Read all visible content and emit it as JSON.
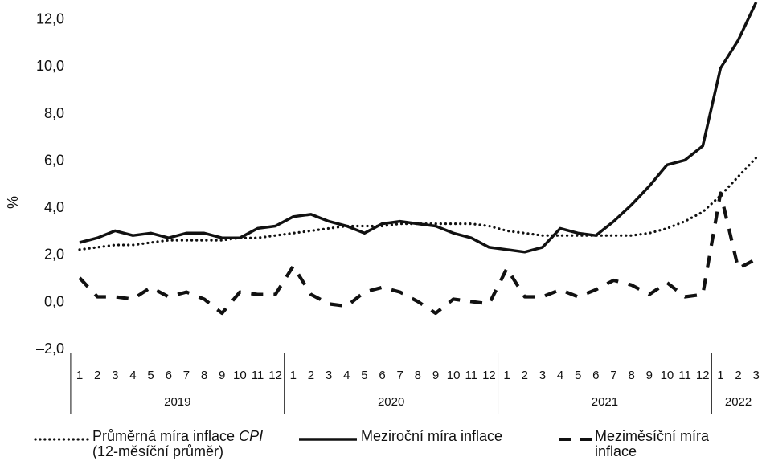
{
  "chart_data": {
    "type": "line",
    "ylabel": "%",
    "ylim": [
      -2.0,
      12.8
    ],
    "yticks": [
      "–2,0",
      "0,0",
      "2,0",
      "4,0",
      "6,0",
      "8,0",
      "10,0",
      "12,0"
    ],
    "ytick_values": [
      -2,
      0,
      2,
      4,
      6,
      8,
      10,
      12
    ],
    "months": [
      "1",
      "2",
      "3",
      "4",
      "5",
      "6",
      "7",
      "8",
      "9",
      "10",
      "11",
      "12",
      "1",
      "2",
      "3",
      "4",
      "5",
      "6",
      "7",
      "8",
      "9",
      "10",
      "11",
      "12",
      "1",
      "2",
      "3",
      "4",
      "5",
      "6",
      "7",
      "8",
      "9",
      "10",
      "11",
      "12",
      "1",
      "2",
      "3"
    ],
    "years": [
      {
        "label": "2019",
        "months": 12
      },
      {
        "label": "2020",
        "months": 12
      },
      {
        "label": "2021",
        "months": 12
      },
      {
        "label": "2022",
        "months": 3
      }
    ],
    "grid": false,
    "legend_position": "bottom",
    "series": [
      {
        "name": "Průměrná míra inflace CPI (12-měsíční průměr)",
        "name_main": "Průměrná míra inflace ",
        "name_italic": "CPI",
        "name_line2": "(12-měsíční průměr)",
        "style": "dotted",
        "values": [
          2.2,
          2.3,
          2.4,
          2.4,
          2.5,
          2.6,
          2.6,
          2.6,
          2.6,
          2.7,
          2.7,
          2.8,
          2.9,
          3.0,
          3.1,
          3.2,
          3.2,
          3.2,
          3.3,
          3.3,
          3.3,
          3.3,
          3.3,
          3.2,
          3.0,
          2.9,
          2.8,
          2.8,
          2.8,
          2.8,
          2.8,
          2.8,
          2.9,
          3.1,
          3.4,
          3.8,
          4.5,
          5.3,
          6.1
        ]
      },
      {
        "name": "Meziroční míra inflace",
        "style": "solid",
        "values": [
          2.5,
          2.7,
          3.0,
          2.8,
          2.9,
          2.7,
          2.9,
          2.9,
          2.7,
          2.7,
          3.1,
          3.2,
          3.6,
          3.7,
          3.4,
          3.2,
          2.9,
          3.3,
          3.4,
          3.3,
          3.2,
          2.9,
          2.7,
          2.3,
          2.2,
          2.1,
          2.3,
          3.1,
          2.9,
          2.8,
          3.4,
          4.1,
          4.9,
          5.8,
          6.0,
          6.6,
          9.9,
          11.1,
          12.7
        ]
      },
      {
        "name": "Meziměsíční míra inflace",
        "name_line1": "Meziměsíční míra",
        "name_line2": "inflace",
        "style": "dashed",
        "values": [
          1.0,
          0.2,
          0.2,
          0.1,
          0.6,
          0.2,
          0.4,
          0.1,
          -0.5,
          0.4,
          0.3,
          0.3,
          1.5,
          0.3,
          -0.1,
          -0.2,
          0.4,
          0.6,
          0.4,
          0.0,
          -0.5,
          0.1,
          0.0,
          -0.1,
          1.4,
          0.2,
          0.2,
          0.5,
          0.2,
          0.5,
          0.9,
          0.7,
          0.3,
          0.8,
          0.2,
          0.3,
          4.6,
          1.4,
          1.8
        ]
      }
    ]
  }
}
